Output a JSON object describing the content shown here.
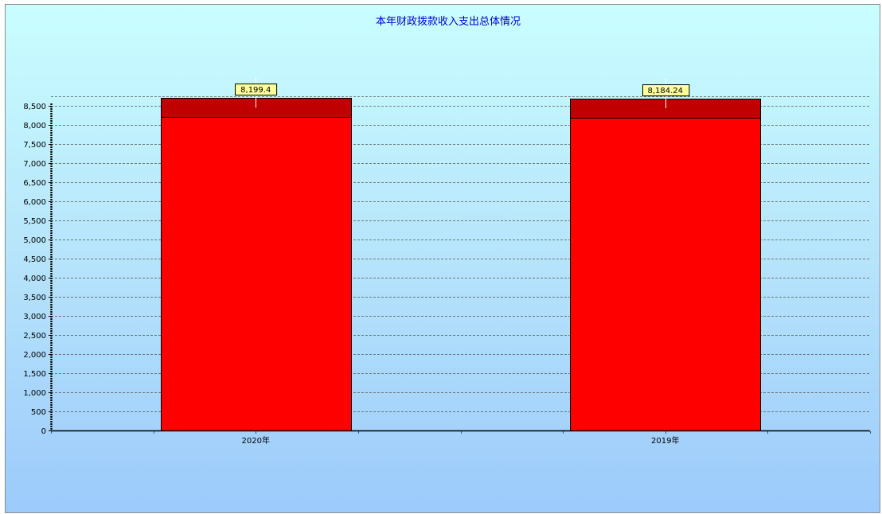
{
  "chart_data": {
    "type": "bar",
    "title": "本年财政拨款收入支出总体情况",
    "categories": [
      "2020年",
      "2019年"
    ],
    "series": [
      {
        "values": [
          8199.4,
          8184.24
        ],
        "color": "#ff0000"
      },
      {
        "values": [
          500,
          500
        ],
        "color": "#c00000"
      }
    ],
    "data_labels": [
      "8,199.4",
      "8,184.24"
    ],
    "ylim": [
      0,
      8850
    ],
    "y_ticks": [
      0,
      500,
      1000,
      1500,
      2000,
      2500,
      3000,
      3500,
      4000,
      4500,
      5000,
      5500,
      6000,
      6500,
      7000,
      7500,
      8000,
      8500
    ],
    "y_tick_labels": [
      "0",
      "500",
      "1,000",
      "1,500",
      "2,000",
      "2,500",
      "3,000",
      "3,500",
      "4,000",
      "4,500",
      "5,000",
      "5,500",
      "6,000",
      "6,500",
      "7,000",
      "7,500",
      "8,000",
      "8,500"
    ],
    "grid": true,
    "legend": "none",
    "colors": {
      "title": "#0000cc",
      "grid": "#555555",
      "axis": "#000000",
      "label_box": "#ffff99"
    }
  }
}
